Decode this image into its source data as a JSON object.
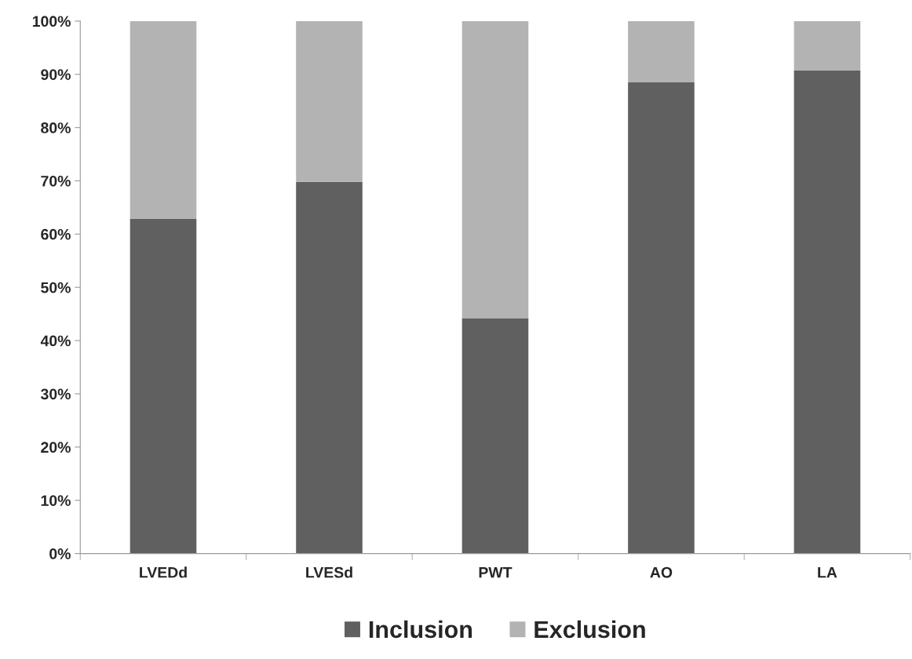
{
  "chart_data": {
    "type": "bar",
    "stacked": true,
    "categories": [
      "LVEDd",
      "LVESd",
      "PWT",
      "AO",
      "LA"
    ],
    "series": [
      {
        "name": "Inclusion",
        "color": "#606060",
        "values": [
          62.9,
          69.8,
          44.2,
          88.5,
          90.7
        ]
      },
      {
        "name": "Exclusion",
        "color": "#b3b3b3",
        "values": [
          37.1,
          30.2,
          55.8,
          11.5,
          9.3
        ]
      }
    ],
    "ylim": [
      0,
      100
    ],
    "yticks": [
      {
        "value": 0,
        "label": "0%"
      },
      {
        "value": 10,
        "label": "10%"
      },
      {
        "value": 20,
        "label": "20%"
      },
      {
        "value": 30,
        "label": "30%"
      },
      {
        "value": 40,
        "label": "40%"
      },
      {
        "value": 50,
        "label": "50%"
      },
      {
        "value": 60,
        "label": "60%"
      },
      {
        "value": 70,
        "label": "70%"
      },
      {
        "value": 80,
        "label": "80%"
      },
      {
        "value": 90,
        "label": "90%"
      },
      {
        "value": 100,
        "label": "100%"
      }
    ],
    "grid": false,
    "legend": "bottom"
  }
}
